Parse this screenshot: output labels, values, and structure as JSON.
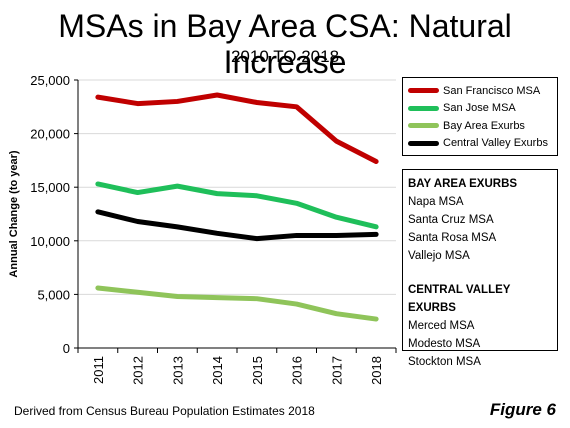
{
  "header": {
    "title": "MSAs in Bay Area CSA: Natural Increase",
    "subtitle": "2010 TO 2018"
  },
  "footer": {
    "source": "Derived from Census Bureau Population Estimates 2018",
    "figure_label": "Figure 6"
  },
  "notes": {
    "group1_title": "BAY AREA EXURBS",
    "group1_items": [
      "Napa MSA",
      "Santa Cruz MSA",
      "Santa Rosa MSA",
      "Vallejo MSA"
    ],
    "group2_title": "CENTRAL VALLEY EXURBS",
    "group2_items": [
      "Merced MSA",
      "Modesto MSA",
      "Stockton MSA"
    ]
  },
  "chart_data": {
    "type": "line",
    "title": "MSAs in Bay Area CSA: Natural Increase",
    "subtitle": "2010 TO 2018",
    "ylabel": "Annual Change (to year)",
    "xlabel": "",
    "x": [
      "2011",
      "2012",
      "2013",
      "2014",
      "2015",
      "2016",
      "2017",
      "2018"
    ],
    "ylim": [
      0,
      25000
    ],
    "yticks": [
      0,
      5000,
      10000,
      15000,
      20000,
      25000
    ],
    "ytick_labels": [
      "0",
      "5,000",
      "10,000",
      "15,000",
      "20,000",
      "25,000"
    ],
    "grid": true,
    "legend_position": "top-right",
    "series": [
      {
        "name": "San Francisco MSA",
        "color": "#c00000",
        "values": [
          23400,
          22800,
          23000,
          23600,
          22900,
          22500,
          19300,
          17400
        ]
      },
      {
        "name": "San Jose MSA",
        "color": "#1fbf5a",
        "values": [
          15300,
          14500,
          15100,
          14400,
          14200,
          13500,
          12200,
          11300
        ]
      },
      {
        "name": "Bay Area Exurbs",
        "color": "#8fc45a",
        "values": [
          5600,
          5200,
          4800,
          4700,
          4600,
          4100,
          3200,
          2700
        ]
      },
      {
        "name": "Central Valley Exurbs",
        "color": "#000000",
        "values": [
          12700,
          11800,
          11300,
          10700,
          10200,
          10500,
          10500,
          10600
        ]
      }
    ]
  }
}
